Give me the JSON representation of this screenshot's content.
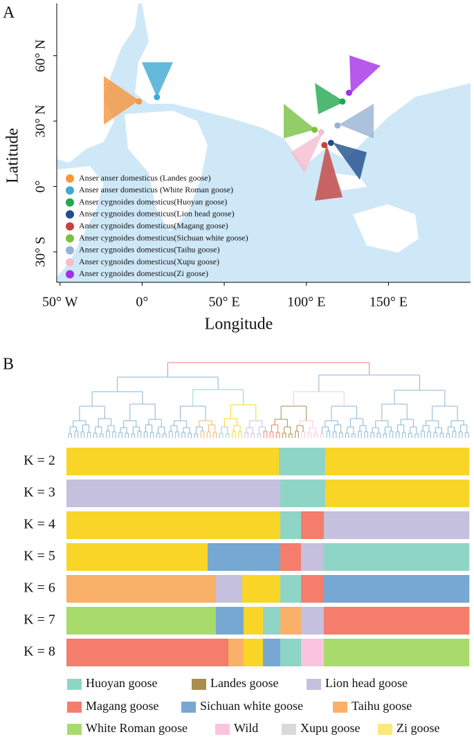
{
  "panel_a": {
    "label": "A",
    "x_label": "Longitude",
    "y_label": "Latitude",
    "xlim": [
      -52,
      200
    ],
    "ylim": [
      -44,
      84
    ],
    "xticks": [
      {
        "value": -50,
        "label": "50° W"
      },
      {
        "value": 0,
        "label": "0°"
      },
      {
        "value": 50,
        "label": "50° E"
      },
      {
        "value": 100,
        "label": "100° E"
      },
      {
        "value": 150,
        "label": "150° E"
      }
    ],
    "yticks": [
      {
        "value": 60,
        "label": "60° N"
      },
      {
        "value": 30,
        "label": "30° N"
      },
      {
        "value": 0,
        "label": "0°"
      },
      {
        "value": -30,
        "label": "30° S"
      }
    ],
    "points": [
      {
        "name": "Anser anser domesticus (Landes goose)",
        "color": "#f7963c",
        "lon": -2,
        "lat": 39
      },
      {
        "name": "Anser anser domesticus (White Roman goose)",
        "color": "#3fa9d3",
        "lon": 9,
        "lat": 41
      },
      {
        "name": "Anser cygnoides domesticus(Huoyan goose)",
        "color": "#22a84f",
        "lon": 122,
        "lat": 39
      },
      {
        "name": "Anser cygnoides domesticus(Lion head goose)",
        "color": "#1f4e8c",
        "lon": 115,
        "lat": 20
      },
      {
        "name": "Anser cygnoides domesticus(Magang goose)",
        "color": "#c7423f",
        "lon": 111,
        "lat": 19
      },
      {
        "name": "Anser cygnoides domesticus(Sichuan white goose)",
        "color": "#79c143",
        "lon": 105,
        "lat": 26
      },
      {
        "name": "Anser cygnoides domesticus(Taihu goose)",
        "color": "#98b2d4",
        "lon": 119,
        "lat": 28
      },
      {
        "name": "Anser cygnoides domesticus(Xupu goose)",
        "color": "#f7bcd0",
        "lon": 109,
        "lat": 25
      },
      {
        "name": "Anser cygnoides domesticus(Zi goose)",
        "color": "#a530e8",
        "lon": 126,
        "lat": 43
      }
    ]
  },
  "panel_b": {
    "label": "B",
    "rows": [
      {
        "label": "K = 2",
        "blocks": [
          {
            "color": "#f9d527",
            "width": 307
          },
          {
            "color": "#8fd5c6",
            "width": 67
          },
          {
            "color": "#f9d527",
            "width": 208
          }
        ]
      },
      {
        "label": "K = 3",
        "blocks": [
          {
            "color": "#c5c0dd",
            "width": 309
          },
          {
            "color": "#8fd5c6",
            "width": 65
          },
          {
            "color": "#f9d527",
            "width": 208
          }
        ]
      },
      {
        "label": "K = 4",
        "blocks": [
          {
            "color": "#f9d527",
            "width": 309
          },
          {
            "color": "#8fd5c6",
            "width": 30
          },
          {
            "color": "#f47d6c",
            "width": 33
          },
          {
            "color": "#c5c0dd",
            "width": 210
          }
        ]
      },
      {
        "label": "K = 5",
        "blocks": [
          {
            "color": "#f9d527",
            "width": 204
          },
          {
            "color": "#76a8d3",
            "width": 105
          },
          {
            "color": "#f47d6c",
            "width": 30
          },
          {
            "color": "#c5c0dd",
            "width": 33
          },
          {
            "color": "#8fd5c6",
            "width": 210
          }
        ]
      },
      {
        "label": "K = 6",
        "blocks": [
          {
            "color": "#f9b068",
            "width": 216
          },
          {
            "color": "#c5c0dd",
            "width": 38
          },
          {
            "color": "#f9d527",
            "width": 55
          },
          {
            "color": "#8fd5c6",
            "width": 30
          },
          {
            "color": "#f47d6c",
            "width": 33
          },
          {
            "color": "#76a8d3",
            "width": 210
          }
        ]
      },
      {
        "label": "K = 7",
        "blocks": [
          {
            "color": "#a8db6c",
            "width": 216
          },
          {
            "color": "#76a8d3",
            "width": 40
          },
          {
            "color": "#f9d527",
            "width": 28
          },
          {
            "color": "#8fd5c6",
            "width": 25
          },
          {
            "color": "#f9b068",
            "width": 30
          },
          {
            "color": "#c5c0dd",
            "width": 33
          },
          {
            "color": "#f47d6c",
            "width": 210
          }
        ]
      },
      {
        "label": "K = 8",
        "blocks": [
          {
            "color": "#f47d6c",
            "width": 234
          },
          {
            "color": "#f9b068",
            "width": 22
          },
          {
            "color": "#f9d527",
            "width": 28
          },
          {
            "color": "#76a8d3",
            "width": 25
          },
          {
            "color": "#8fd5c6",
            "width": 30
          },
          {
            "color": "#fbc4de",
            "width": 33
          },
          {
            "color": "#a8db6c",
            "width": 210
          }
        ]
      }
    ],
    "legend": [
      {
        "name": "Huoyan goose",
        "color": "#8fd5c6"
      },
      {
        "name": "Landes goose",
        "color": "#a88d4c"
      },
      {
        "name": "Lion head goose",
        "color": "#c5c0dd"
      },
      {
        "name": "Magang goose",
        "color": "#f47d6c"
      },
      {
        "name": "Sichuan white goose",
        "color": "#76a8d3"
      },
      {
        "name": "Taihu goose",
        "color": "#f9b068"
      },
      {
        "name": "White Roman goose",
        "color": "#a8db6c"
      },
      {
        "name": "Wild",
        "color": "#fbc4de"
      },
      {
        "name": "Xupu goose",
        "color": "#d9d9d9"
      },
      {
        "name": "Zi goose",
        "color": "#fce97a"
      }
    ]
  }
}
